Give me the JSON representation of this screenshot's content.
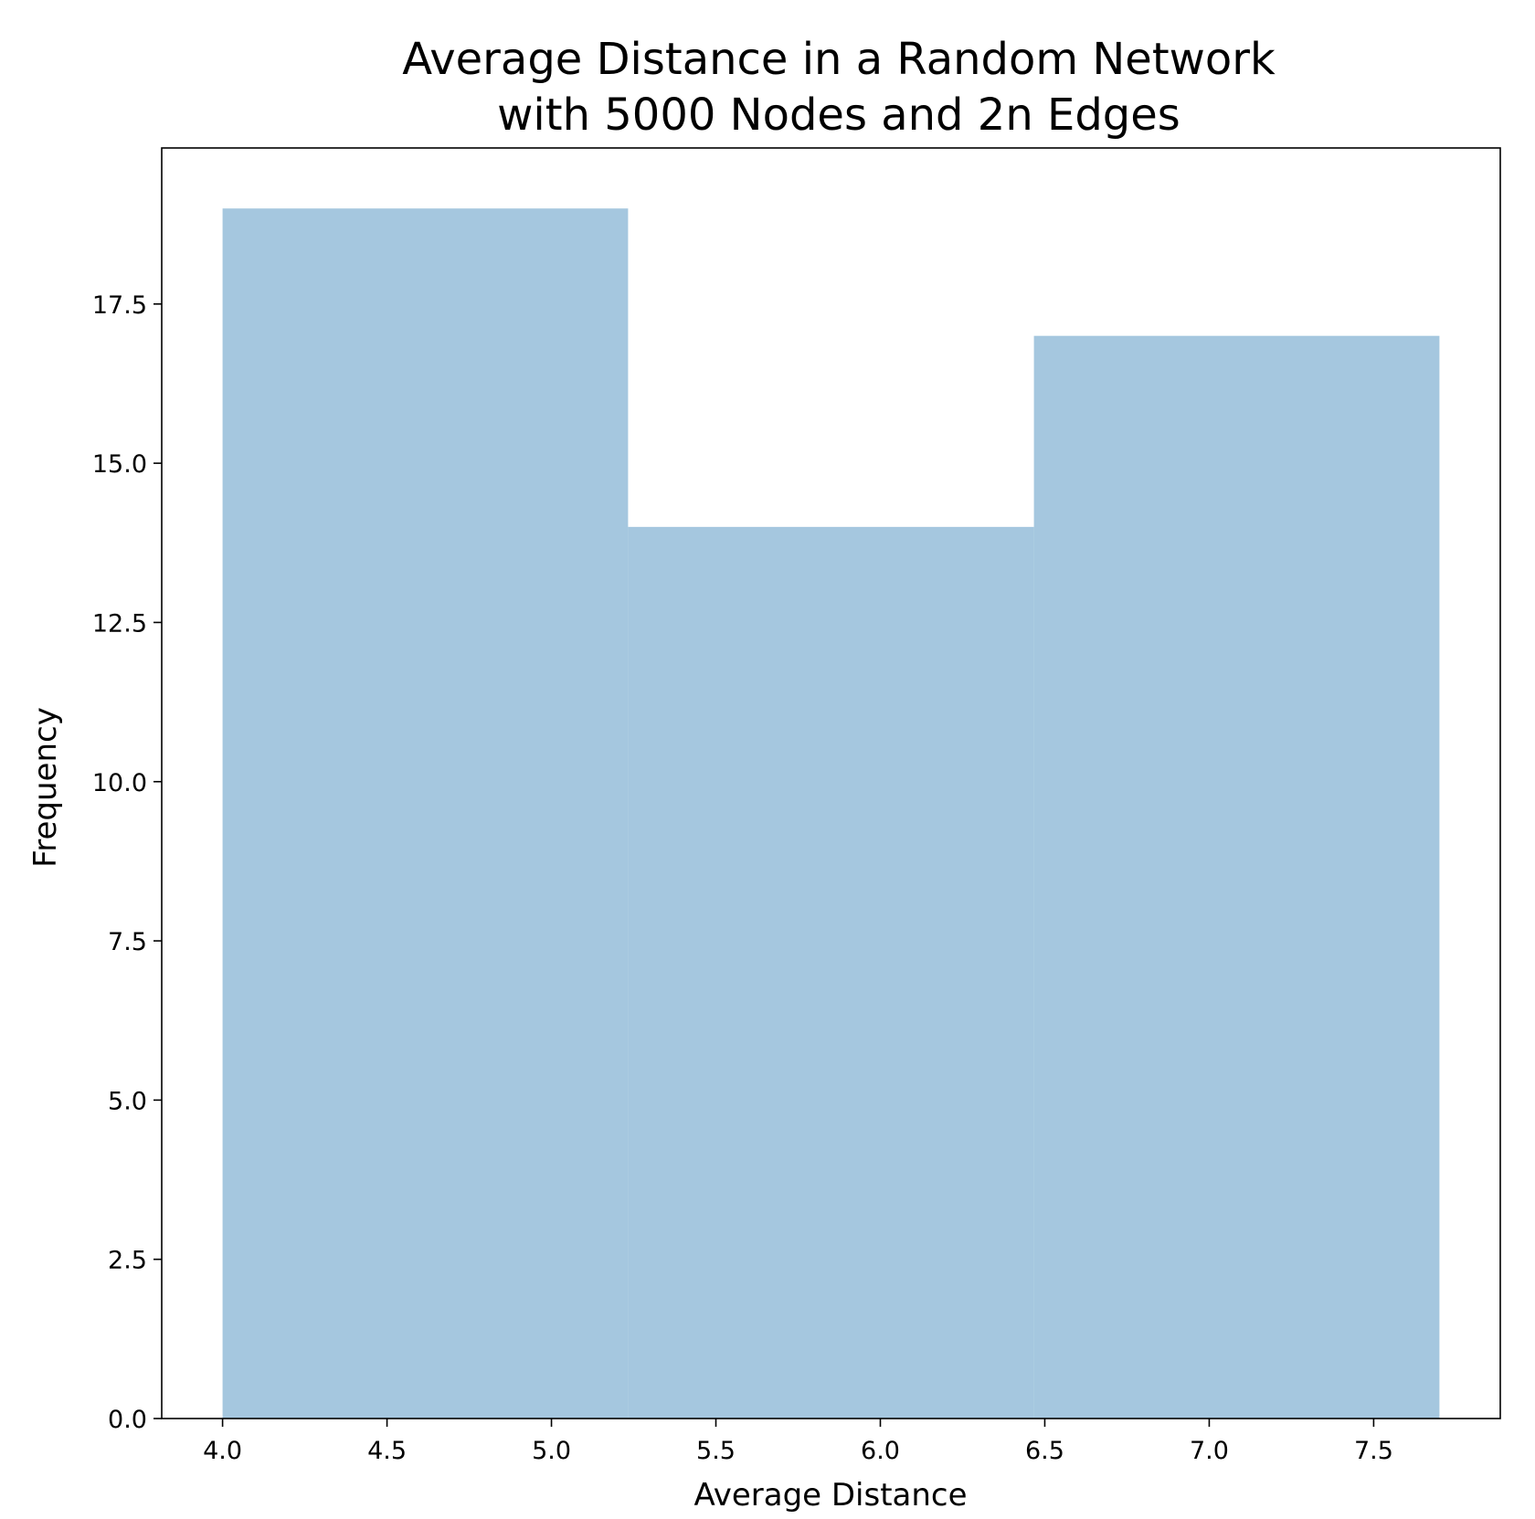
{
  "chart_data": {
    "type": "bar",
    "title_lines": [
      "Average Distance in a Random Network",
      "with 5000 Nodes and 2n Edges"
    ],
    "xlabel": "Average Distance",
    "ylabel": "Frequency",
    "bins": [
      {
        "x_start": 4.0,
        "x_end": 5.233,
        "value": 19
      },
      {
        "x_start": 5.233,
        "x_end": 6.467,
        "value": 14
      },
      {
        "x_start": 6.467,
        "x_end": 7.7,
        "value": 17
      }
    ],
    "xlim": [
      3.815,
      7.885
    ],
    "ylim": [
      0,
      19.95
    ],
    "x_ticks": [
      {
        "value": 4.0,
        "label": "4.0"
      },
      {
        "value": 4.5,
        "label": "4.5"
      },
      {
        "value": 5.0,
        "label": "5.0"
      },
      {
        "value": 5.5,
        "label": "5.5"
      },
      {
        "value": 6.0,
        "label": "6.0"
      },
      {
        "value": 6.5,
        "label": "6.5"
      },
      {
        "value": 7.0,
        "label": "7.0"
      },
      {
        "value": 7.5,
        "label": "7.5"
      }
    ],
    "y_ticks": [
      {
        "value": 0.0,
        "label": "0.0"
      },
      {
        "value": 2.5,
        "label": "2.5"
      },
      {
        "value": 5.0,
        "label": "5.0"
      },
      {
        "value": 7.5,
        "label": "7.5"
      },
      {
        "value": 10.0,
        "label": "10.0"
      },
      {
        "value": 12.5,
        "label": "12.5"
      },
      {
        "value": 15.0,
        "label": "15.0"
      },
      {
        "value": 17.5,
        "label": "17.5"
      }
    ],
    "bar_color": "#a5c7df",
    "axis_color": "#000000",
    "grid": false,
    "legend": "none"
  }
}
